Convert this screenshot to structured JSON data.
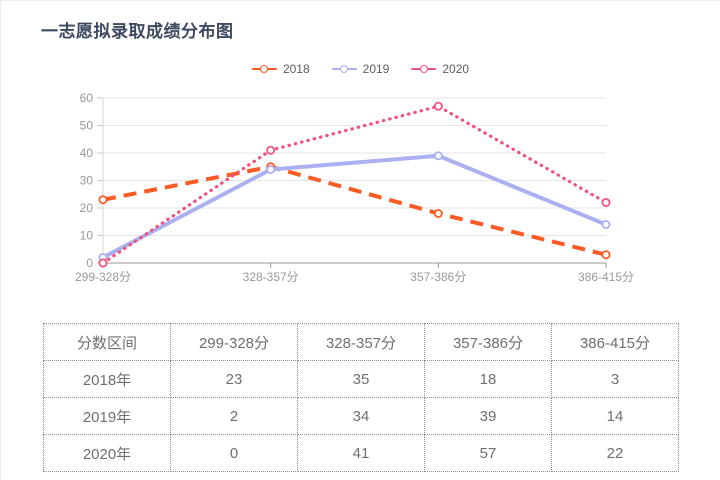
{
  "page": {
    "title": "一志愿拟录取成绩分布图"
  },
  "chart_data": {
    "type": "line",
    "title": "一志愿拟录取成绩分布图",
    "categories": [
      "299-328分",
      "328-357分",
      "357-386分",
      "386-415分"
    ],
    "series": [
      {
        "name": "2018",
        "values": [
          23,
          35,
          18,
          3
        ],
        "color": "#fb5b24",
        "line_style": "dashed"
      },
      {
        "name": "2019",
        "values": [
          2,
          34,
          39,
          14
        ],
        "color": "#abb1f0",
        "line_style": "solid"
      },
      {
        "name": "2020",
        "values": [
          0,
          41,
          57,
          22
        ],
        "color": "#f0527e",
        "line_style": "dotted"
      }
    ],
    "xlabel": "",
    "ylabel": "",
    "ylim": [
      0,
      60
    ],
    "y_ticks": [
      0,
      10,
      20,
      30,
      40,
      50,
      60
    ],
    "grid": true,
    "legend_position": "top"
  },
  "table": {
    "headers": [
      "分数区间",
      "299-328分",
      "328-357分",
      "357-386分",
      "386-415分"
    ],
    "rows": [
      {
        "label": "2018年",
        "values": [
          "23",
          "35",
          "18",
          "3"
        ]
      },
      {
        "label": "2019年",
        "values": [
          "2",
          "34",
          "39",
          "14"
        ]
      },
      {
        "label": "2020年",
        "values": [
          "0",
          "41",
          "57",
          "22"
        ]
      }
    ]
  },
  "colors": {
    "title_text": "#3c4961",
    "axis_text": "#999999",
    "grid_line": "#e6e6e6",
    "axis_line": "#999999",
    "table_text": "#6f6f6f",
    "table_border": "#8c8c8c"
  }
}
